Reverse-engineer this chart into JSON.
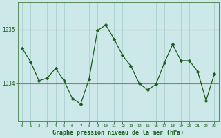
{
  "x": [
    0,
    1,
    2,
    3,
    4,
    5,
    6,
    7,
    8,
    9,
    10,
    11,
    12,
    13,
    14,
    15,
    16,
    17,
    18,
    19,
    20,
    21,
    22,
    23
  ],
  "y": [
    1034.65,
    1034.4,
    1034.05,
    1034.1,
    1034.28,
    1034.05,
    1033.72,
    1033.62,
    1034.08,
    1034.98,
    1035.08,
    1034.82,
    1034.52,
    1034.32,
    1034.0,
    1033.88,
    1033.98,
    1034.38,
    1034.72,
    1034.42,
    1034.42,
    1034.22,
    1033.68,
    1034.18
  ],
  "line_color": "#1a5c1a",
  "marker": "D",
  "marker_size": 2.5,
  "bg_color": "#cce8e8",
  "grid_x_color": "#aacece",
  "grid_y_color": "#cc6666",
  "axis_label_color": "#1a5c1a",
  "tick_color": "#1a5c1a",
  "border_color": "#5a8a5a",
  "xlabel": "Graphe pression niveau de la mer (hPa)",
  "yticks": [
    1034,
    1035
  ],
  "ylim": [
    1033.3,
    1035.5
  ],
  "xlim": [
    -0.5,
    23.5
  ],
  "xticks": [
    0,
    1,
    2,
    3,
    4,
    5,
    6,
    7,
    8,
    9,
    10,
    11,
    12,
    13,
    14,
    15,
    16,
    17,
    18,
    19,
    20,
    21,
    22,
    23
  ]
}
